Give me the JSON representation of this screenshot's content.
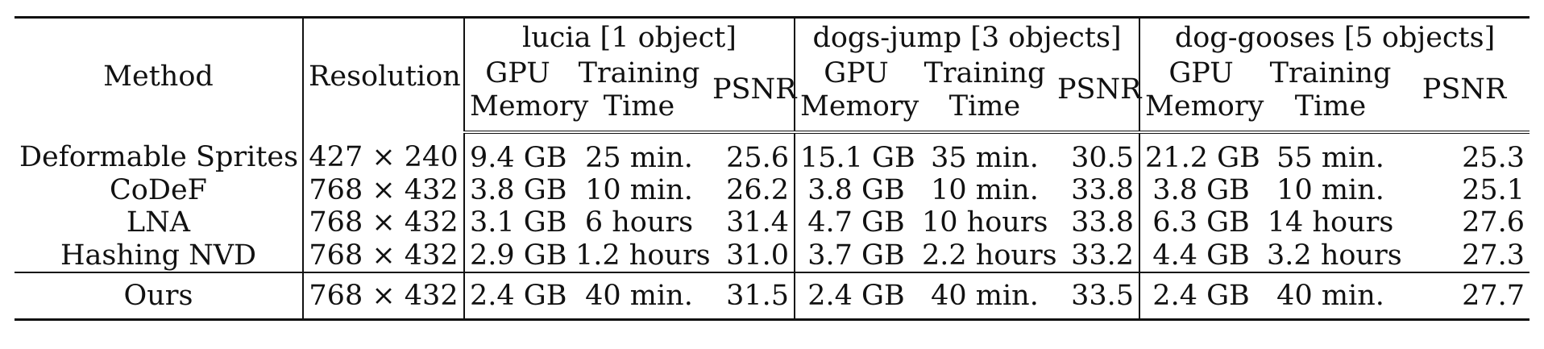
{
  "table": {
    "col_method": "Method",
    "col_resolution": "Resolution",
    "groups": [
      "lucia [1 object]",
      "dogs-jump [3 objects]",
      "dog-gooses [5 objects]"
    ],
    "sub": {
      "gpu_top": "GPU",
      "gpu_bottom": "Memory",
      "time_top": "Training",
      "time_bottom": "Time",
      "psnr": "PSNR"
    },
    "rows": [
      {
        "method": "Deformable Sprites",
        "res": "427 × 240",
        "g1": [
          "9.4 GB",
          "25 min.",
          "25.6"
        ],
        "g2": [
          "15.1 GB",
          "35 min.",
          "30.5"
        ],
        "g3": [
          "21.2 GB",
          "55 min.",
          "25.3"
        ]
      },
      {
        "method": "CoDeF",
        "res": "768 × 432",
        "g1": [
          "3.8 GB",
          "10 min.",
          "26.2"
        ],
        "g2": [
          "3.8 GB",
          "10 min.",
          "33.8"
        ],
        "g3": [
          "3.8 GB",
          "10 min.",
          "25.1"
        ]
      },
      {
        "method": "LNA",
        "res": "768 × 432",
        "g1": [
          "3.1 GB",
          "6 hours",
          "31.4"
        ],
        "g2": [
          "4.7 GB",
          "10 hours",
          "33.8"
        ],
        "g3": [
          "6.3 GB",
          "14 hours",
          "27.6"
        ]
      },
      {
        "method": "Hashing NVD",
        "res": "768 × 432",
        "g1": [
          "2.9 GB",
          "1.2 hours",
          "31.0"
        ],
        "g2": [
          "3.7 GB",
          "2.2 hours",
          "33.2"
        ],
        "g3": [
          "4.4 GB",
          "3.2 hours",
          "27.3"
        ]
      },
      {
        "method": "Ours",
        "res": "768 × 432",
        "g1": [
          "2.4 GB",
          "40 min.",
          "31.5"
        ],
        "g2": [
          "2.4 GB",
          "40 min.",
          "33.5"
        ],
        "g3": [
          "2.4 GB",
          "40 min.",
          "27.7"
        ]
      }
    ]
  }
}
